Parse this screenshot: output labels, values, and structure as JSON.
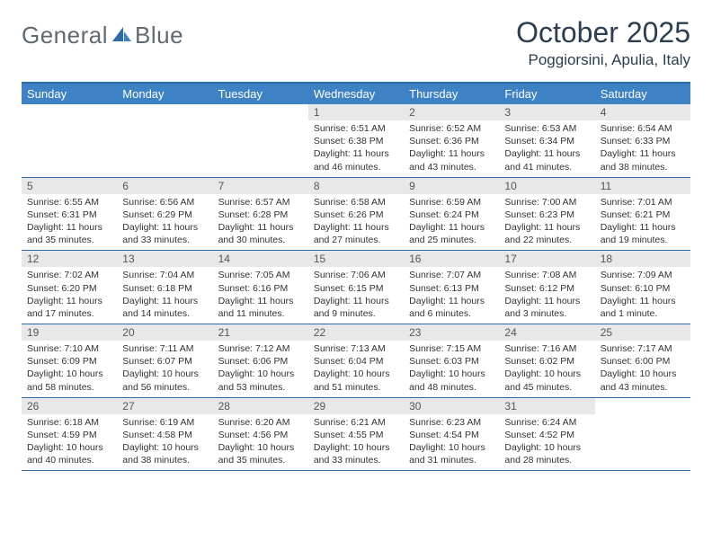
{
  "logo": {
    "text_gray": "General",
    "text_blue": "Blue",
    "gray_color": "#5f6a72",
    "blue_color": "#3d7fc1",
    "icon_color": "#2f6aa8"
  },
  "header": {
    "month_title": "October 2025",
    "location": "Poggiorsini, Apulia, Italy"
  },
  "colors": {
    "header_bar": "#3d82c4",
    "rule": "#2f6aa8",
    "daynum_bg": "#e8e8e8",
    "text": "#333333",
    "title_text": "#2c3e50"
  },
  "weekdays": [
    "Sunday",
    "Monday",
    "Tuesday",
    "Wednesday",
    "Thursday",
    "Friday",
    "Saturday"
  ],
  "weeks": [
    [
      {
        "num": "",
        "sunrise": "",
        "sunset": "",
        "daylight": ""
      },
      {
        "num": "",
        "sunrise": "",
        "sunset": "",
        "daylight": ""
      },
      {
        "num": "",
        "sunrise": "",
        "sunset": "",
        "daylight": ""
      },
      {
        "num": "1",
        "sunrise": "Sunrise: 6:51 AM",
        "sunset": "Sunset: 6:38 PM",
        "daylight": "Daylight: 11 hours and 46 minutes."
      },
      {
        "num": "2",
        "sunrise": "Sunrise: 6:52 AM",
        "sunset": "Sunset: 6:36 PM",
        "daylight": "Daylight: 11 hours and 43 minutes."
      },
      {
        "num": "3",
        "sunrise": "Sunrise: 6:53 AM",
        "sunset": "Sunset: 6:34 PM",
        "daylight": "Daylight: 11 hours and 41 minutes."
      },
      {
        "num": "4",
        "sunrise": "Sunrise: 6:54 AM",
        "sunset": "Sunset: 6:33 PM",
        "daylight": "Daylight: 11 hours and 38 minutes."
      }
    ],
    [
      {
        "num": "5",
        "sunrise": "Sunrise: 6:55 AM",
        "sunset": "Sunset: 6:31 PM",
        "daylight": "Daylight: 11 hours and 35 minutes."
      },
      {
        "num": "6",
        "sunrise": "Sunrise: 6:56 AM",
        "sunset": "Sunset: 6:29 PM",
        "daylight": "Daylight: 11 hours and 33 minutes."
      },
      {
        "num": "7",
        "sunrise": "Sunrise: 6:57 AM",
        "sunset": "Sunset: 6:28 PM",
        "daylight": "Daylight: 11 hours and 30 minutes."
      },
      {
        "num": "8",
        "sunrise": "Sunrise: 6:58 AM",
        "sunset": "Sunset: 6:26 PM",
        "daylight": "Daylight: 11 hours and 27 minutes."
      },
      {
        "num": "9",
        "sunrise": "Sunrise: 6:59 AM",
        "sunset": "Sunset: 6:24 PM",
        "daylight": "Daylight: 11 hours and 25 minutes."
      },
      {
        "num": "10",
        "sunrise": "Sunrise: 7:00 AM",
        "sunset": "Sunset: 6:23 PM",
        "daylight": "Daylight: 11 hours and 22 minutes."
      },
      {
        "num": "11",
        "sunrise": "Sunrise: 7:01 AM",
        "sunset": "Sunset: 6:21 PM",
        "daylight": "Daylight: 11 hours and 19 minutes."
      }
    ],
    [
      {
        "num": "12",
        "sunrise": "Sunrise: 7:02 AM",
        "sunset": "Sunset: 6:20 PM",
        "daylight": "Daylight: 11 hours and 17 minutes."
      },
      {
        "num": "13",
        "sunrise": "Sunrise: 7:04 AM",
        "sunset": "Sunset: 6:18 PM",
        "daylight": "Daylight: 11 hours and 14 minutes."
      },
      {
        "num": "14",
        "sunrise": "Sunrise: 7:05 AM",
        "sunset": "Sunset: 6:16 PM",
        "daylight": "Daylight: 11 hours and 11 minutes."
      },
      {
        "num": "15",
        "sunrise": "Sunrise: 7:06 AM",
        "sunset": "Sunset: 6:15 PM",
        "daylight": "Daylight: 11 hours and 9 minutes."
      },
      {
        "num": "16",
        "sunrise": "Sunrise: 7:07 AM",
        "sunset": "Sunset: 6:13 PM",
        "daylight": "Daylight: 11 hours and 6 minutes."
      },
      {
        "num": "17",
        "sunrise": "Sunrise: 7:08 AM",
        "sunset": "Sunset: 6:12 PM",
        "daylight": "Daylight: 11 hours and 3 minutes."
      },
      {
        "num": "18",
        "sunrise": "Sunrise: 7:09 AM",
        "sunset": "Sunset: 6:10 PM",
        "daylight": "Daylight: 11 hours and 1 minute."
      }
    ],
    [
      {
        "num": "19",
        "sunrise": "Sunrise: 7:10 AM",
        "sunset": "Sunset: 6:09 PM",
        "daylight": "Daylight: 10 hours and 58 minutes."
      },
      {
        "num": "20",
        "sunrise": "Sunrise: 7:11 AM",
        "sunset": "Sunset: 6:07 PM",
        "daylight": "Daylight: 10 hours and 56 minutes."
      },
      {
        "num": "21",
        "sunrise": "Sunrise: 7:12 AM",
        "sunset": "Sunset: 6:06 PM",
        "daylight": "Daylight: 10 hours and 53 minutes."
      },
      {
        "num": "22",
        "sunrise": "Sunrise: 7:13 AM",
        "sunset": "Sunset: 6:04 PM",
        "daylight": "Daylight: 10 hours and 51 minutes."
      },
      {
        "num": "23",
        "sunrise": "Sunrise: 7:15 AM",
        "sunset": "Sunset: 6:03 PM",
        "daylight": "Daylight: 10 hours and 48 minutes."
      },
      {
        "num": "24",
        "sunrise": "Sunrise: 7:16 AM",
        "sunset": "Sunset: 6:02 PM",
        "daylight": "Daylight: 10 hours and 45 minutes."
      },
      {
        "num": "25",
        "sunrise": "Sunrise: 7:17 AM",
        "sunset": "Sunset: 6:00 PM",
        "daylight": "Daylight: 10 hours and 43 minutes."
      }
    ],
    [
      {
        "num": "26",
        "sunrise": "Sunrise: 6:18 AM",
        "sunset": "Sunset: 4:59 PM",
        "daylight": "Daylight: 10 hours and 40 minutes."
      },
      {
        "num": "27",
        "sunrise": "Sunrise: 6:19 AM",
        "sunset": "Sunset: 4:58 PM",
        "daylight": "Daylight: 10 hours and 38 minutes."
      },
      {
        "num": "28",
        "sunrise": "Sunrise: 6:20 AM",
        "sunset": "Sunset: 4:56 PM",
        "daylight": "Daylight: 10 hours and 35 minutes."
      },
      {
        "num": "29",
        "sunrise": "Sunrise: 6:21 AM",
        "sunset": "Sunset: 4:55 PM",
        "daylight": "Daylight: 10 hours and 33 minutes."
      },
      {
        "num": "30",
        "sunrise": "Sunrise: 6:23 AM",
        "sunset": "Sunset: 4:54 PM",
        "daylight": "Daylight: 10 hours and 31 minutes."
      },
      {
        "num": "31",
        "sunrise": "Sunrise: 6:24 AM",
        "sunset": "Sunset: 4:52 PM",
        "daylight": "Daylight: 10 hours and 28 minutes."
      },
      {
        "num": "",
        "sunrise": "",
        "sunset": "",
        "daylight": ""
      }
    ]
  ]
}
